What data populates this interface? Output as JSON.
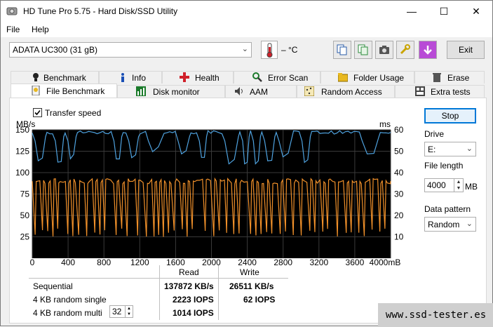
{
  "window": {
    "title": "HD Tune Pro 5.75 - Hard Disk/SSD Utility",
    "minimize": "—",
    "maximize": "☐",
    "close": "✕"
  },
  "menu": {
    "file": "File",
    "help": "Help"
  },
  "toolbar": {
    "drive": "ADATA  UC300 (31 gB)",
    "temperature": "– °C",
    "exit": "Exit"
  },
  "tabs_row1": [
    "Benchmark",
    "Info",
    "Health",
    "Error Scan",
    "Folder Usage",
    "Erase"
  ],
  "tabs_row2": [
    "File Benchmark",
    "Disk monitor",
    "AAM",
    "Random Access",
    "Extra tests"
  ],
  "panel": {
    "transfer_speed_label": "Transfer speed",
    "transfer_speed_checked": true,
    "stop_label": "Stop",
    "drive_label": "Drive",
    "drive_value": "E:",
    "file_length_label": "File length",
    "file_length_value": "4000",
    "file_length_unit": "MB",
    "data_pattern_label": "Data pattern",
    "data_pattern_value": "Random"
  },
  "chart_data": {
    "type": "line",
    "y_left_label": "MB/s",
    "y_right_label": "ms",
    "y_left_ticks": [
      "150",
      "125",
      "100",
      "75",
      "50",
      "25"
    ],
    "y_right_ticks": [
      "60",
      "50",
      "40",
      "30",
      "20",
      "10"
    ],
    "x_ticks": [
      "0",
      "400",
      "800",
      "1200",
      "1600",
      "2000",
      "2400",
      "2800",
      "3200",
      "3600",
      "4000mB"
    ],
    "ylim_left": [
      0,
      150
    ],
    "ylim_right": [
      0,
      60
    ],
    "xlim": [
      0,
      4000
    ],
    "series": [
      {
        "name": "",
        "color": "#4fa3e0",
        "typical": 147,
        "dip_to": 110
      },
      {
        "name": "",
        "color": "#f0902a",
        "typical": 90,
        "dip_to": 25
      }
    ]
  },
  "results": {
    "read_header": "Read",
    "write_header": "Write",
    "rows": [
      {
        "label": "Sequential",
        "read": "137872 KB/s",
        "write": "26511 KB/s"
      },
      {
        "label": "4 KB random single",
        "read": "2223 IOPS",
        "write": "62 IOPS"
      },
      {
        "label": "4 KB random multi",
        "read": "1014 IOPS",
        "write": ""
      }
    ],
    "multi_queue": "32"
  },
  "watermark": "www.ssd-tester.es"
}
